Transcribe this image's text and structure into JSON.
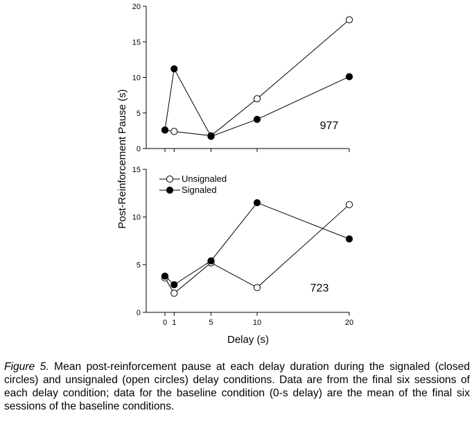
{
  "chart_data": [
    {
      "type": "line",
      "subject": "977",
      "x": [
        0,
        1,
        5,
        10,
        20
      ],
      "series": [
        {
          "name": "Unsignaled",
          "marker": "open-circle",
          "values": [
            2.6,
            2.4,
            1.8,
            7.0,
            18.1
          ]
        },
        {
          "name": "Signaled",
          "marker": "filled-circle",
          "values": [
            2.6,
            11.2,
            1.7,
            4.1,
            10.1
          ]
        }
      ],
      "ylim": [
        0,
        20
      ],
      "yticks": [
        "0",
        "5",
        "10",
        "15",
        "20"
      ],
      "xlim": [
        -2,
        20
      ]
    },
    {
      "type": "line",
      "subject": "723",
      "x": [
        0,
        1,
        5,
        10,
        20
      ],
      "series": [
        {
          "name": "Unsignaled",
          "marker": "open-circle",
          "values": [
            3.6,
            2.0,
            5.2,
            2.6,
            11.3
          ]
        },
        {
          "name": "Signaled",
          "marker": "filled-circle",
          "values": [
            3.8,
            2.9,
            5.4,
            11.5,
            7.7
          ]
        }
      ],
      "ylim": [
        0,
        15
      ],
      "yticks": [
        "0",
        "5",
        "10",
        "15"
      ],
      "xlim": [
        -2,
        20
      ]
    }
  ],
  "axes": {
    "ylabel": "Post-Reinforcement Pause (s)",
    "xlabel": "Delay (s)",
    "xticks": [
      "0",
      "1",
      "5",
      "10",
      "20"
    ]
  },
  "legend": {
    "items": [
      {
        "label": "Unsignaled",
        "marker": "open-circle"
      },
      {
        "label": "Signaled",
        "marker": "filled-circle"
      }
    ]
  },
  "caption": {
    "label": "Figure 5.",
    "text": " Mean post-reinforcement pause at each delay duration during the signaled (closed circles) and unsignaled (open circles) delay conditions. Data are from the final  six sessions of each delay condition; data for the baseline condition (0-s delay) are the mean of the final six sessions of the baseline conditions."
  }
}
